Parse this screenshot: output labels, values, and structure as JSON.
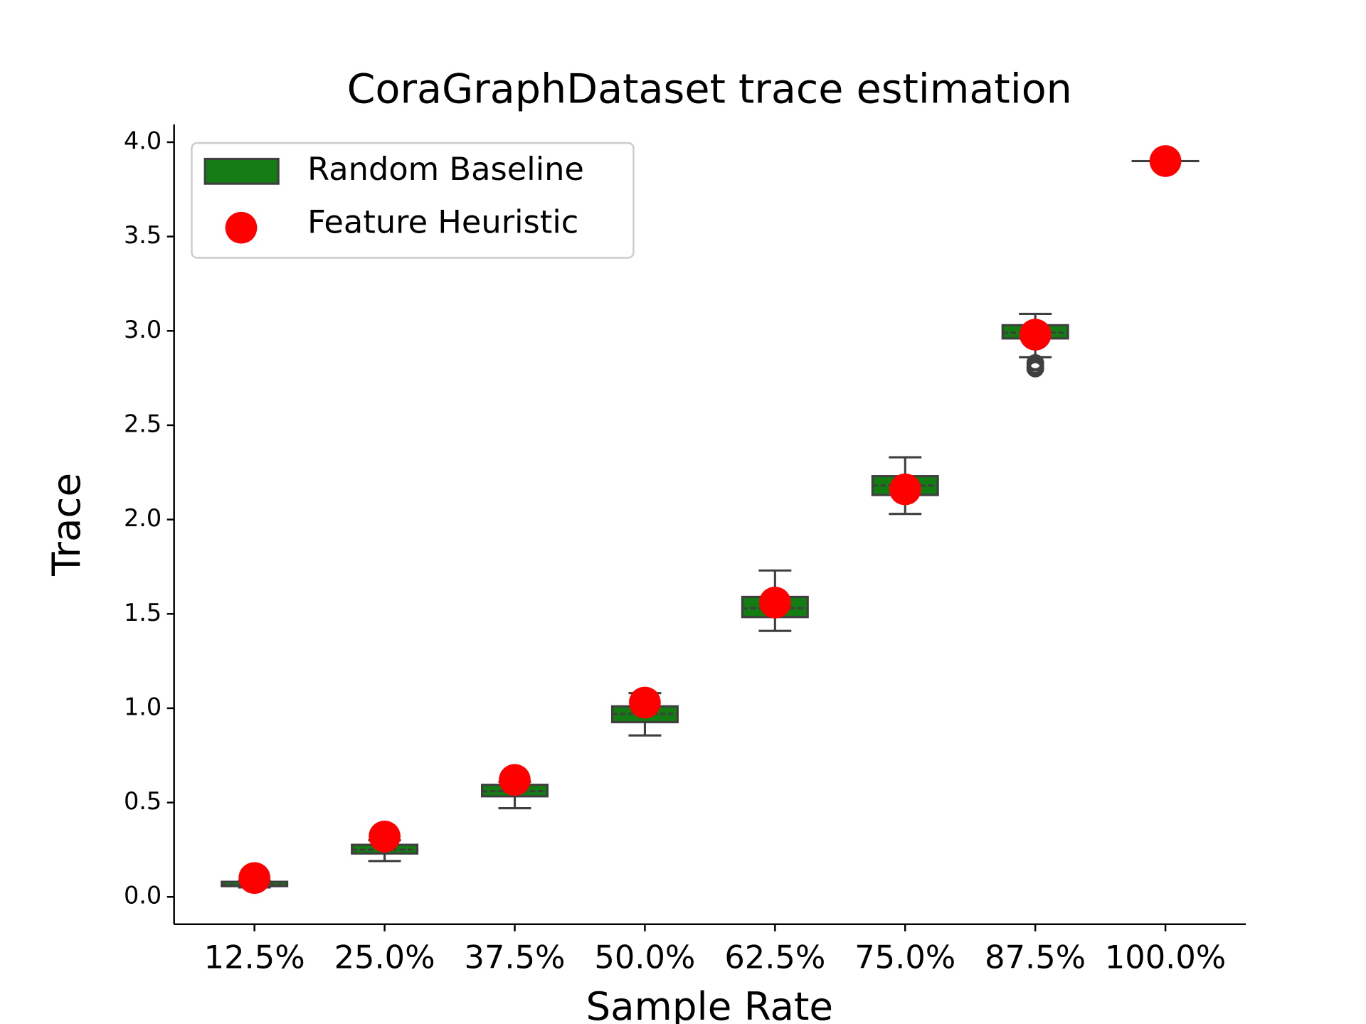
{
  "chart_data": {
    "type": "box",
    "title": "CoraGraphDataset trace estimation",
    "x_label": "Sample Rate",
    "y_label": "Trace",
    "categories": [
      "12.5%",
      "25.0%",
      "37.5%",
      "50.0%",
      "62.5%",
      "75.0%",
      "87.5%",
      "100.0%"
    ],
    "series": [
      {
        "name": "Random Baseline",
        "color": "#137d13",
        "edge_color": "#3f3f3f",
        "boxes": [
          {
            "low": 0.05,
            "q1": 0.057,
            "median": 0.065,
            "q3": 0.08,
            "high": 0.085,
            "outliers": []
          },
          {
            "low": 0.19,
            "q1": 0.23,
            "median": 0.25,
            "q3": 0.276,
            "high": 0.3,
            "outliers": []
          },
          {
            "low": 0.47,
            "q1": 0.533,
            "median": 0.56,
            "q3": 0.594,
            "high": 0.61,
            "outliers": []
          },
          {
            "low": 0.856,
            "q1": 0.926,
            "median": 0.97,
            "q3": 1.01,
            "high": 1.08,
            "outliers": []
          },
          {
            "low": 1.41,
            "q1": 1.483,
            "median": 1.53,
            "q3": 1.59,
            "high": 1.73,
            "outliers": []
          },
          {
            "low": 2.03,
            "q1": 2.13,
            "median": 2.18,
            "q3": 2.23,
            "high": 2.33,
            "outliers": []
          },
          {
            "low": 2.86,
            "q1": 2.96,
            "median": 2.99,
            "q3": 3.03,
            "high": 3.09,
            "outliers": [
              2.83,
              2.81,
              2.8
            ]
          },
          {
            "low": 3.9,
            "q1": 3.9,
            "median": 3.9,
            "q3": 3.9,
            "high": 3.9,
            "outliers": []
          }
        ]
      },
      {
        "name": "Feature Heuristic",
        "color": "#ff0000",
        "values": [
          0.1,
          0.32,
          0.62,
          1.03,
          1.56,
          2.16,
          2.98,
          3.9
        ]
      }
    ],
    "ylim": [
      -0.145,
      4.094
    ],
    "yticks": [
      {
        "value": 0,
        "label": "0.0"
      },
      0.5,
      {
        "value": 1,
        "label": "1.0"
      },
      1.5,
      {
        "value": 2,
        "label": "2.0"
      },
      2.5,
      {
        "value": 3,
        "label": "3.0"
      },
      3.5,
      {
        "value": 4,
        "label": "4.0"
      }
    ],
    "legend": "upper left"
  }
}
